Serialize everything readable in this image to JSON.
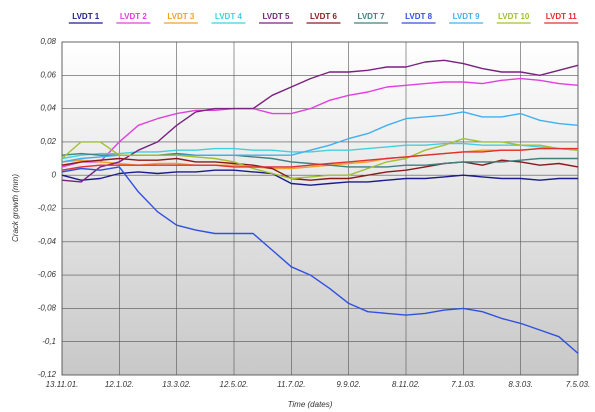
{
  "chart_data": {
    "type": "line",
    "x_label": "Time (dates)",
    "y_label": "Crack growth (mm)",
    "categories": [
      "13.11.01.",
      null,
      null,
      "12.1.02.",
      null,
      null,
      "13.3.02.",
      null,
      null,
      "12.5.02.",
      null,
      null,
      "11.7.02.",
      null,
      null,
      "9.9.02.",
      null,
      null,
      "8.11.02.",
      null,
      null,
      "7.1.03.",
      null,
      null,
      "8.3.03.",
      null,
      null,
      "7.5.03."
    ],
    "ylim": [
      -0.12,
      0.08
    ],
    "yticks": [
      {
        "value": 0.08,
        "label": "0,08"
      },
      {
        "value": 0.06,
        "label": "0,06"
      },
      {
        "value": 0.04,
        "label": "0,04"
      },
      {
        "value": 0.02,
        "label": "0,02"
      },
      0,
      {
        "value": -0.02,
        "label": "-0,02"
      },
      {
        "value": -0.04,
        "label": "-0,04"
      },
      {
        "value": -0.06,
        "label": "-0,06"
      },
      {
        "value": -0.08,
        "label": "-0,08"
      },
      {
        "value": -0.1,
        "label": "-0,1"
      },
      {
        "value": -0.12,
        "label": "-0,12"
      }
    ],
    "grid": true,
    "legend": "top",
    "series": [
      {
        "name": "LVDT 1",
        "color": "#1c1c8c",
        "values": [
          0,
          -0.003,
          -0.002,
          0.001,
          0.002,
          0.001,
          0.002,
          0.002,
          0.003,
          0.003,
          0.002,
          0.001,
          -0.005,
          -0.006,
          -0.005,
          -0.004,
          -0.004,
          -0.003,
          -0.002,
          -0.002,
          -0.001,
          0,
          -0.001,
          -0.002,
          -0.002,
          -0.003,
          -0.002,
          -0.002
        ]
      },
      {
        "name": "LVDT 2",
        "color": "#e040e0",
        "values": [
          0.005,
          0.008,
          0.008,
          0.02,
          0.03,
          0.034,
          0.037,
          0.039,
          0.039,
          0.04,
          0.04,
          0.037,
          0.037,
          0.04,
          0.045,
          0.048,
          0.05,
          0.053,
          0.054,
          0.055,
          0.056,
          0.056,
          0.055,
          0.057,
          0.058,
          0.057,
          0.055,
          0.054
        ]
      },
      {
        "name": "LVDT 3",
        "color": "#f0a030",
        "values": [
          0.008,
          0.009,
          0.008,
          0.007,
          0.006,
          0.007,
          0.007,
          0.006,
          0.006,
          0.006,
          0.005,
          0.004,
          0.004,
          0.005,
          0.006,
          0.007,
          0.008,
          0.01,
          0.011,
          0.012,
          0.013,
          0.014,
          0.015,
          0.015,
          0.015,
          0.016,
          0.016,
          0.015
        ]
      },
      {
        "name": "LVDT 4",
        "color": "#40d0e0",
        "values": [
          0.01,
          0.012,
          0.013,
          0.013,
          0.014,
          0.014,
          0.015,
          0.015,
          0.016,
          0.016,
          0.015,
          0.015,
          0.014,
          0.014,
          0.015,
          0.015,
          0.016,
          0.017,
          0.018,
          0.018,
          0.019,
          0.019,
          0.018,
          0.018,
          0.018,
          0.017,
          0.016,
          0.015
        ]
      },
      {
        "name": "LVDT 5",
        "color": "#7a2080",
        "values": [
          -0.003,
          -0.004,
          0.005,
          0.008,
          0.015,
          0.02,
          0.03,
          0.038,
          0.04,
          0.04,
          0.04,
          0.048,
          0.053,
          0.058,
          0.062,
          0.062,
          0.063,
          0.065,
          0.065,
          0.068,
          0.069,
          0.067,
          0.064,
          0.062,
          0.062,
          0.06,
          0.063,
          0.066
        ]
      },
      {
        "name": "LVDT 6",
        "color": "#8b1a1a",
        "values": [
          0.006,
          0.008,
          0.009,
          0.01,
          0.009,
          0.009,
          0.01,
          0.008,
          0.008,
          0.007,
          0.006,
          0.004,
          -0.002,
          -0.003,
          -0.002,
          -0.002,
          0,
          0.002,
          0.003,
          0.005,
          0.007,
          0.008,
          0.006,
          0.009,
          0.008,
          0.006,
          0.007,
          0.005
        ]
      },
      {
        "name": "LVDT 7",
        "color": "#408080",
        "values": [
          0.012,
          0.013,
          0.012,
          0.012,
          0.012,
          0.012,
          0.013,
          0.012,
          0.012,
          0.012,
          0.011,
          0.01,
          0.008,
          0.007,
          0.006,
          0.005,
          0.005,
          0.005,
          0.006,
          0.006,
          0.007,
          0.008,
          0.008,
          0.008,
          0.009,
          0.01,
          0.01,
          0.01
        ]
      },
      {
        "name": "LVDT 8",
        "color": "#3050e0",
        "values": [
          0.002,
          0.004,
          0.003,
          0.005,
          -0.01,
          -0.022,
          -0.03,
          -0.033,
          -0.035,
          -0.035,
          -0.035,
          -0.045,
          -0.055,
          -0.06,
          -0.068,
          -0.077,
          -0.082,
          -0.083,
          -0.084,
          -0.083,
          -0.081,
          -0.08,
          -0.082,
          -0.086,
          -0.089,
          -0.093,
          -0.097,
          -0.107
        ]
      },
      {
        "name": "LVDT 9",
        "color": "#40b0f0",
        "values": [
          0.008,
          0.01,
          0.011,
          0.012,
          0.012,
          0.012,
          0.012,
          0.012,
          0.012,
          0.012,
          0.012,
          0.012,
          0.012,
          0.015,
          0.018,
          0.022,
          0.025,
          0.03,
          0.034,
          0.035,
          0.036,
          0.038,
          0.035,
          0.035,
          0.037,
          0.033,
          0.031,
          0.03
        ]
      },
      {
        "name": "LVDT 10",
        "color": "#a0c030",
        "values": [
          0.01,
          0.02,
          0.02,
          0.012,
          0.012,
          0.012,
          0.012,
          0.011,
          0.01,
          0.008,
          0.004,
          0.001,
          -0.002,
          -0.001,
          0,
          0,
          0.004,
          0.008,
          0.01,
          0.015,
          0.018,
          0.022,
          0.02,
          0.02,
          0.018,
          0.018,
          0.016,
          0.015
        ]
      },
      {
        "name": "LVDT 11",
        "color": "#e03030",
        "values": [
          0.003,
          0.005,
          0.006,
          0.006,
          0.006,
          0.006,
          0.006,
          0.006,
          0.006,
          0.005,
          0.005,
          0.005,
          0.005,
          0.006,
          0.007,
          0.008,
          0.009,
          0.01,
          0.011,
          0.012,
          0.013,
          0.014,
          0.014,
          0.015,
          0.015,
          0.016,
          0.016,
          0.016
        ]
      }
    ]
  }
}
